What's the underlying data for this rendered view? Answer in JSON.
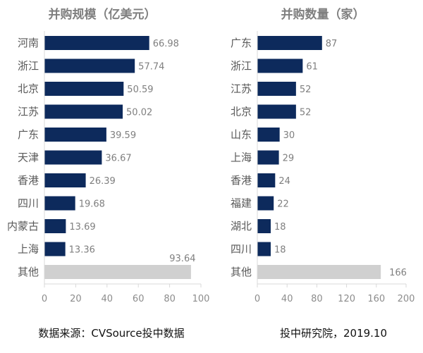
{
  "chart_data": [
    {
      "type": "bar",
      "orientation": "horizontal",
      "title": "并购规模（亿美元）",
      "categories": [
        "河南",
        "浙江",
        "北京",
        "江苏",
        "广东",
        "天津",
        "香港",
        "四川",
        "内蒙古",
        "上海",
        "其他"
      ],
      "values": [
        66.98,
        57.74,
        50.59,
        50.02,
        39.59,
        36.67,
        26.39,
        19.68,
        13.69,
        13.36,
        93.64
      ],
      "xlim": [
        0,
        100
      ],
      "xticks": [
        "0",
        "20",
        "40",
        "60",
        "80",
        "100"
      ],
      "grid": false,
      "colors": {
        "main": "#0d2a5c",
        "other": "#d0d0d0"
      }
    },
    {
      "type": "bar",
      "orientation": "horizontal",
      "title": "并购数量（家）",
      "categories": [
        "广东",
        "浙江",
        "江苏",
        "北京",
        "山东",
        "上海",
        "香港",
        "福建",
        "湖北",
        "四川",
        "其他"
      ],
      "values": [
        87,
        61,
        52,
        52,
        30,
        29,
        24,
        22,
        18,
        18,
        166
      ],
      "xlim": [
        0,
        200
      ],
      "xticks": [
        "0",
        "40",
        "80",
        "120",
        "160",
        "200"
      ],
      "grid": false,
      "colors": {
        "main": "#0d2a5c",
        "other": "#d0d0d0"
      }
    }
  ],
  "footer": {
    "source": "数据来源：CVSource投中数据",
    "credit": "投中研究院，2019.10"
  }
}
